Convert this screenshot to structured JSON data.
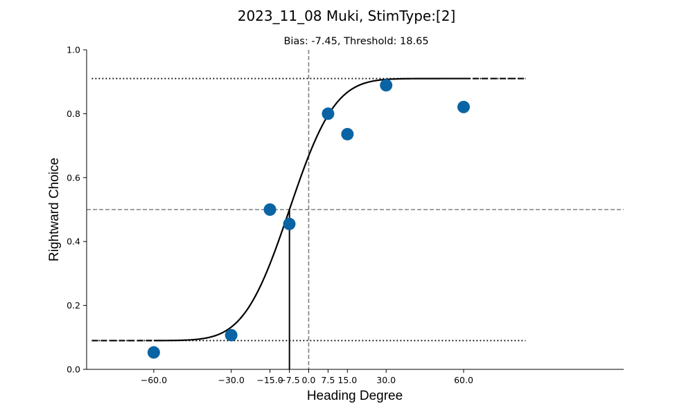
{
  "chart_data": {
    "type": "scatter",
    "suptitle": "2023_11_08 Muki, StimType:[2]",
    "title": "Bias: -7.45, Threshold: 18.65",
    "xlabel": "Heading Degree",
    "ylabel": "Rightward Choice",
    "xlim": [
      -86,
      122
    ],
    "ylim": [
      0.0,
      1.0
    ],
    "xticks": [
      -60,
      -30,
      -15,
      -7.5,
      0,
      7.5,
      15,
      30,
      60
    ],
    "xtick_labels": [
      "−60.0",
      "−30.0",
      "−15.0",
      "−7.5",
      "0.0",
      "7.5",
      "15.0",
      "30.0",
      "60.0"
    ],
    "yticks": [
      0.0,
      0.2,
      0.4,
      0.6,
      0.8,
      1.0
    ],
    "ytick_labels": [
      "0.0",
      "0.2",
      "0.4",
      "0.6",
      "0.8",
      "1.0"
    ],
    "grid": false,
    "points": {
      "x": [
        -60,
        -30,
        -15,
        -7.5,
        7.5,
        15,
        30,
        60
      ],
      "y": [
        0.053,
        0.107,
        0.5,
        0.455,
        0.8,
        0.736,
        0.889,
        0.821
      ],
      "color": "#0a64a4"
    },
    "fit": {
      "bias": -7.45,
      "threshold": 18.65,
      "lower_asymptote": 0.09,
      "upper_asymptote": 0.91,
      "x_range": [
        -84,
        84
      ],
      "color": "#000000"
    },
    "reference_lines": {
      "vertical_zero": 0,
      "horizontal_half": 0.5,
      "bias_marker": -7.45,
      "lower_dotted": 0.09,
      "upper_dotted": 0.91,
      "color": "#808080"
    }
  }
}
